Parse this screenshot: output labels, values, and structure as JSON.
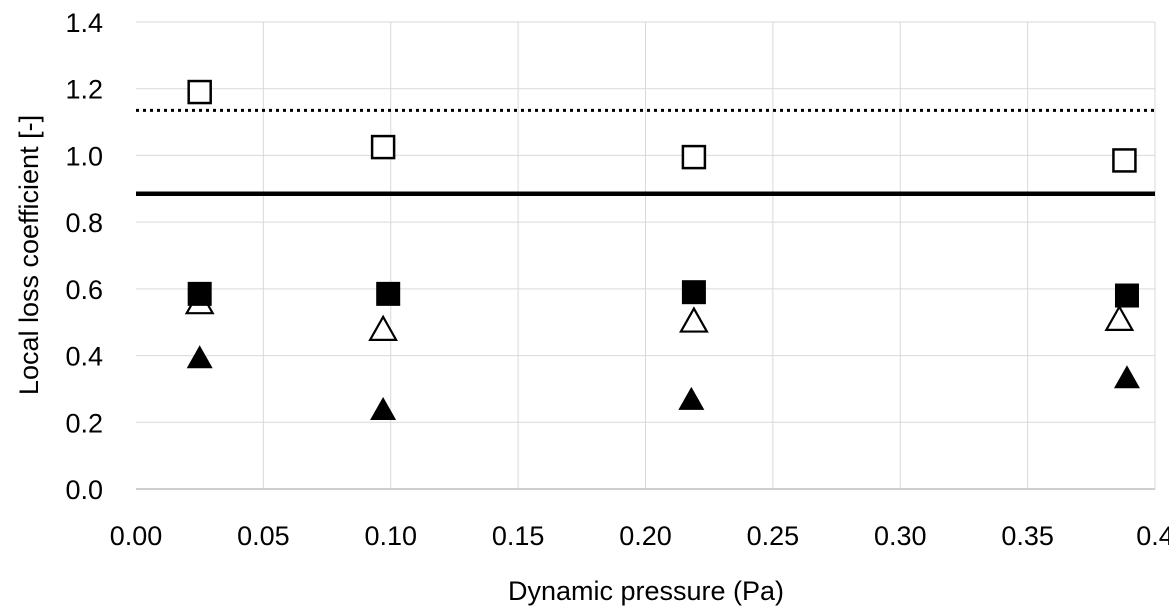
{
  "chart_data": {
    "type": "scatter",
    "xlabel": "Dynamic pressure (Pa)",
    "ylabel": "Local loss coefficient [-]",
    "xlim": [
      0,
      0.4
    ],
    "ylim": [
      0,
      1.4
    ],
    "grid": true,
    "legend": "none",
    "x_ticks": [
      "0.00",
      "0.05",
      "0.10",
      "0.15",
      "0.20",
      "0.25",
      "0.30",
      "0.35",
      "0.4"
    ],
    "y_ticks": [
      "0.0",
      "0.2",
      "0.4",
      "0.6",
      "0.8",
      "1.0",
      "1.2",
      "1.4"
    ],
    "series": [
      {
        "marker": "open-square",
        "color": "#000000",
        "points": [
          [
            0.025,
            1.19
          ],
          [
            0.097,
            1.025
          ],
          [
            0.219,
            0.995
          ],
          [
            0.388,
            0.985
          ]
        ]
      },
      {
        "marker": "filled-square",
        "color": "#000000",
        "points": [
          [
            0.025,
            0.585
          ],
          [
            0.099,
            0.585
          ],
          [
            0.219,
            0.59
          ],
          [
            0.389,
            0.58
          ]
        ]
      },
      {
        "marker": "open-triangle",
        "color": "#000000",
        "points": [
          [
            0.025,
            0.56
          ],
          [
            0.097,
            0.48
          ],
          [
            0.219,
            0.505
          ],
          [
            0.386,
            0.51
          ]
        ]
      },
      {
        "marker": "filled-triangle",
        "color": "#000000",
        "points": [
          [
            0.025,
            0.395
          ],
          [
            0.097,
            0.24
          ],
          [
            0.218,
            0.27
          ],
          [
            0.389,
            0.335
          ]
        ]
      }
    ],
    "reference_lines": [
      {
        "style": "dotted",
        "y": 1.135,
        "color": "#000000"
      },
      {
        "style": "solid",
        "y": 0.885,
        "color": "#000000"
      }
    ]
  }
}
